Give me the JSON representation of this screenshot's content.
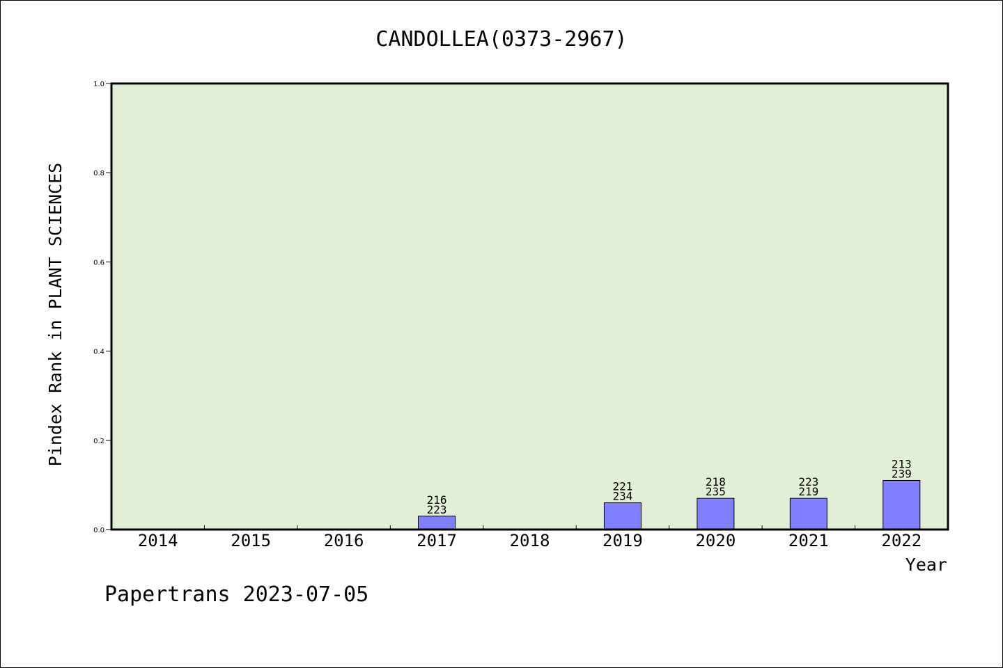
{
  "chart_data": {
    "type": "bar",
    "title": "CANDOLLEA(0373-2967)",
    "xlabel": "Year",
    "ylabel": "Pindex Rank in PLANT SCIENCES",
    "ylim": [
      0,
      1.0
    ],
    "yticks": [
      "0.0",
      "0.2",
      "0.4",
      "0.6",
      "0.8",
      "1.0"
    ],
    "categories": [
      "2014",
      "2015",
      "2016",
      "2017",
      "2018",
      "2019",
      "2020",
      "2021",
      "2022"
    ],
    "values": [
      0,
      0,
      0,
      0.03,
      0,
      0.06,
      0.07,
      0.07,
      0.11
    ],
    "bar_labels": [
      null,
      null,
      null,
      [
        "216",
        "223"
      ],
      null,
      [
        "221",
        "234"
      ],
      [
        "218",
        "235"
      ],
      [
        "223",
        "219"
      ],
      [
        "213",
        "239"
      ]
    ],
    "grid": false,
    "colors": {
      "plot_bg": "#e2efd6",
      "bar_fill": "#8080ff",
      "bar_stroke": "#000000"
    }
  },
  "footer": {
    "text": "Papertrans 2023-07-05"
  }
}
